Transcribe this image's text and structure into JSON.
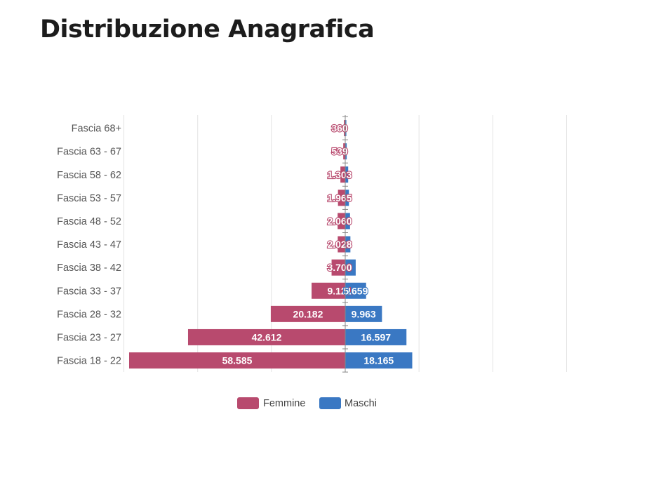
{
  "page": {
    "title": "Distribuzione Anagrafica"
  },
  "chart_data": {
    "type": "bar",
    "orientation": "horizontal",
    "layout": "population-pyramid",
    "categories": [
      "Fascia 68+",
      "Fascia 63 - 67",
      "Fascia 58 - 62",
      "Fascia 53 - 57",
      "Fascia 48 - 52",
      "Fascia 43 - 47",
      "Fascia 38 - 42",
      "Fascia 33 - 37",
      "Fascia 28 - 32",
      "Fascia 23 - 27",
      "Fascia 18 - 22"
    ],
    "series": [
      {
        "name": "Femmine",
        "color": "#b84a6e",
        "values": [
          360,
          539,
          1303,
          1965,
          2060,
          2028,
          3700,
          9121,
          20182,
          42612,
          58585
        ],
        "labels": [
          "360",
          "539",
          "1.303",
          "1.965",
          "2.060",
          "2.028",
          "3.700",
          "9.121",
          "20.182",
          "42.612",
          "58.585"
        ]
      },
      {
        "name": "Maschi",
        "color": "#3a78c3",
        "values": [
          300,
          400,
          800,
          1000,
          1300,
          1400,
          2837,
          5659,
          9963,
          16597,
          18165
        ],
        "labels": [
          "",
          "",
          "",
          "",
          "",
          "",
          "",
          "5.659",
          "9.963",
          "16.597",
          "18.165"
        ]
      }
    ],
    "xlim": [
      -60000,
      60000
    ],
    "grid": true,
    "legend": "bottom"
  }
}
